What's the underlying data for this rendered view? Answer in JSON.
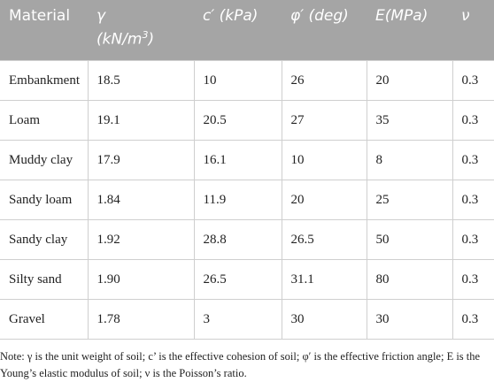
{
  "table": {
    "header": [
      [
        "Material"
      ],
      [
        "γ",
        "(kN/m",
        "3",
        ")"
      ],
      [
        "c′ (kPa)"
      ],
      [
        "φ′ (deg)"
      ],
      [
        "E(MPa)"
      ],
      [
        "ν"
      ]
    ],
    "rows": [
      [
        "Embankment",
        "18.5",
        "10",
        "26",
        "20",
        "0.3"
      ],
      [
        "Loam",
        "19.1",
        "20.5",
        "27",
        "35",
        "0.3"
      ],
      [
        "Muddy clay",
        "17.9",
        "16.1",
        "10",
        "8",
        "0.3"
      ],
      [
        "Sandy loam",
        "1.84",
        "11.9",
        "20",
        "25",
        "0.3"
      ],
      [
        "Sandy clay",
        "1.92",
        "28.8",
        "26.5",
        "50",
        "0.3"
      ],
      [
        "Silty sand",
        "1.90",
        "26.5",
        "31.1",
        "80",
        "0.3"
      ],
      [
        "Gravel",
        "1.78",
        "3",
        "30",
        "30",
        "0.3"
      ]
    ],
    "note": "Note: γ is the unit weight of soil; c’ is the effective cohesion of soil; φ′ is the effective friction angle; E is the Young’s elastic modulus of soil; ν is the Poisson’s ratio."
  }
}
